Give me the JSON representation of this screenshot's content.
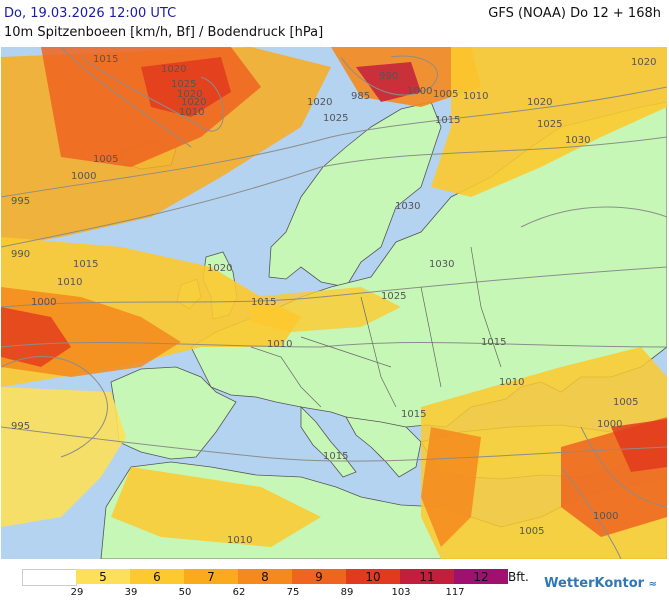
{
  "header": {
    "date": "Do, 19.03.2026 12:00 UTC",
    "model": "GFS (NOAA) Do 12 + 168h",
    "parameter": "10m Spitzenboeen [km/h, Bf] / Bodendruck [hPa]"
  },
  "legend": {
    "classes": [
      {
        "label": "",
        "color": "#ffffff"
      },
      {
        "label": "5",
        "color": "#fde05a"
      },
      {
        "label": "6",
        "color": "#fcc92e"
      },
      {
        "label": "7",
        "color": "#f9ab1c"
      },
      {
        "label": "8",
        "color": "#f5891d"
      },
      {
        "label": "9",
        "color": "#ef6420"
      },
      {
        "label": "10",
        "color": "#e23a1e"
      },
      {
        "label": "11",
        "color": "#c31e3b"
      },
      {
        "label": "12",
        "color": "#a0106e"
      }
    ],
    "thresholds": [
      "29",
      "39",
      "50",
      "62",
      "75",
      "89",
      "103",
      "117"
    ],
    "unit": "Bft."
  },
  "isobar_labels": [
    "1015",
    "1020",
    "1025",
    "1020",
    "1020",
    "1010",
    "1005",
    "1000",
    "995",
    "990",
    "985",
    "1000",
    "1005",
    "1010",
    "1015",
    "1020",
    "1025",
    "990",
    "1000",
    "1010",
    "1015",
    "1020",
    "1025",
    "1030",
    "1030",
    "1030",
    "1025",
    "1020",
    "1020",
    "1015",
    "1015",
    "1010",
    "1010",
    "1005",
    "1005",
    "1000",
    "1000",
    "1015",
    "995",
    "1015",
    "1010"
  ],
  "brand": {
    "name": "WetterKontor",
    "icon": "wind-icon"
  }
}
